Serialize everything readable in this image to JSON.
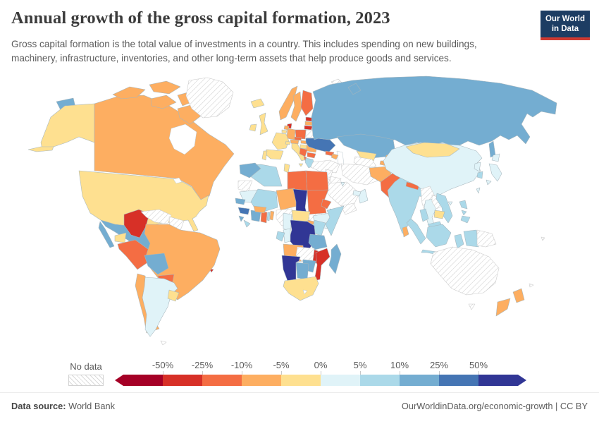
{
  "header": {
    "title": "Annual growth of the gross capital formation, 2023",
    "subtitle": "Gross capital formation is the total value of investments in a country. This includes spending on new buildings, machinery, infrastructure, inventories, and other long-term assets that help produce goods and services.",
    "logo_line1": "Our World",
    "logo_line2": "in Data"
  },
  "legend": {
    "no_data_label": "No data"
  },
  "footer": {
    "source_label": "Data source:",
    "source_value": "World Bank",
    "right_text": "OurWorldinData.org/economic-growth | CC BY"
  },
  "chart_data": {
    "type": "choropleth_map",
    "title": "Annual growth of the gross capital formation, 2023",
    "unit": "%",
    "legend_ticks": [
      "-50%",
      "-25%",
      "-10%",
      "-5%",
      "0%",
      "5%",
      "10%",
      "25%",
      "50%"
    ],
    "palette": [
      "#a50026",
      "#d73027",
      "#f46d43",
      "#fdae61",
      "#fee090",
      "#e0f3f8",
      "#abd9e9",
      "#74add1",
      "#4575b4",
      "#313695"
    ],
    "bin_ranges": [
      "< -50%",
      "-50% to -25%",
      "-25% to -10%",
      "-10% to -5%",
      "-5% to 0%",
      "0% to 5%",
      "5% to 10%",
      "10% to 25%",
      "25% to 50%",
      "> 50%"
    ],
    "no_data_fill": "hatched",
    "countries": {
      "haiti": 0,
      "colombia": 1,
      "mozambique": 1,
      "malawi": 1,
      "denmark": 1,
      "estonia": 1,
      "lithuania": 1,
      "moldova": 1,
      "jamaica": 1,
      "trinidad-and-tobago": 1,
      "peru": 2,
      "paraguay": 2,
      "honduras": 2,
      "nicaragua": 2,
      "finland": 2,
      "poland": 2,
      "czechia": 2,
      "serbia": 2,
      "bulgaria": 2,
      "albania": 2,
      "ghana": 2,
      "libya": 2,
      "egypt": 2,
      "sudan": 2,
      "eritrea": 2,
      "pakistan": 2,
      "nepal": 2,
      "georgia": 2,
      "canada": 3,
      "brazil": 3,
      "chile": 3,
      "norway": 3,
      "sweden": 3,
      "germany": 3,
      "netherlands": 3,
      "latvia": 3,
      "austria": 3,
      "slovakia": 3,
      "romania": 3,
      "niger": 3,
      "burkina-faso": 3,
      "benin": 3,
      "uganda": 3,
      "angola": 3,
      "rwanda": 3,
      "new-zealand": 3,
      "afghanistan": 3,
      "kyrgyzstan": 3,
      "tajikistan": 3,
      "bhutan": 3,
      "sri-lanka": 3,
      "azerbaijan": 3,
      "united-states": 4,
      "ecuador": 4,
      "uruguay": 4,
      "costa-rica": 4,
      "iceland": 4,
      "ireland": 4,
      "united-kingdom": 4,
      "belgium": 4,
      "france": 4,
      "spain": 4,
      "portugal": 4,
      "italy": 4,
      "switzerland": 4,
      "hungary": 4,
      "israel": 4,
      "tunisia": 4,
      "central-african-republic": 4,
      "south-africa": 4,
      "mongolia": 4,
      "uzbekistan": 4,
      "cambodia": 4,
      "cyprus": 4,
      "argentina": 5,
      "puerto-rico": 5,
      "mauritania": 5,
      "cameroon": 5,
      "congo": 5,
      "ethiopia": 5,
      "china": 5,
      "japan": 5,
      "taiwan": 5,
      "north-korea": 5,
      "thailand": 5,
      "united-arab-emirates": 5,
      "kuwait": 5,
      "oman": 5,
      "greece": 6,
      "algeria": 6,
      "mali": 6,
      "somalia": 6,
      "kenya": 6,
      "liberia": 6,
      "togo": 6,
      "gabon": 6,
      "india": 6,
      "bangladesh": 6,
      "vietnam": 6,
      "malaysia": 6,
      "philippines": 6,
      "indonesia": 6,
      "south-korea": 6,
      "dominican-republic": 6,
      "mexico": 7,
      "guatemala": 7,
      "panama": 7,
      "bolivia": 7,
      "russia": 7,
      "kazakhstan": 7,
      "morocco": 7,
      "senegal": 7,
      "sierra-leone": 7,
      "cote-divoire": 7,
      "tanzania": 7,
      "zimbabwe": 7,
      "botswana": 7,
      "madagascar": 7,
      "ukraine": 8,
      "guinea": 8,
      "chad": 9,
      "dr-congo": 9,
      "namibia": 9,
      "djibouti": 9,
      "greenland": "no_data",
      "venezuela": "no_data",
      "guyana-suriname": "no_data",
      "cuba": "no_data",
      "bahamas": "no_data",
      "falkland-islands": "no_data",
      "belarus": "no_data",
      "turkey": "no_data",
      "syria": "no_data",
      "iraq": "no_data",
      "jordan": "no_data",
      "saudi-arabia": "no_data",
      "yemen": "no_data",
      "iran": "no_data",
      "turkmenistan": "no_data",
      "myanmar": "no_data",
      "laos": "no_data",
      "nigeria": "no_data",
      "south-sudan": "no_data",
      "western-sahara": "no_data",
      "zambia": "no_data",
      "australia": "no_data",
      "papua-new-guinea": "no_data",
      "svalbard": "no_data",
      "fiji": "no_data",
      "new-caledonia": "no_data"
    }
  }
}
